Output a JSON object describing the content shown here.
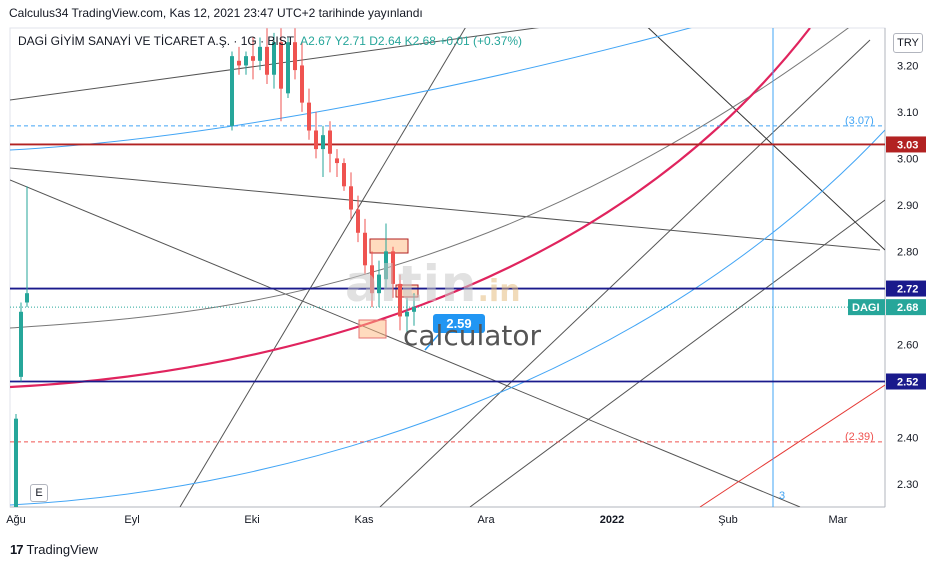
{
  "header": {
    "publisher_line": "Calculus34 TradingView.com, Kas 12, 2021 23:47 UTC+2 tarihinde yayınlandı"
  },
  "legend": {
    "symbol": "DAGİ GİYİM SANAYİ VE TİCARET A.Ş. · 1G · BIST",
    "ohlc": "A2.67  Y2.71  D2.64  K2.68  +0.01 (+0.37%)"
  },
  "currency": "TRY",
  "colors": {
    "up": "#26a69a",
    "down": "#ef5350",
    "level_red": "#b22222",
    "level_navy": "#1a1a8c",
    "curve": "#e0245e",
    "blue_line": "#42a5f5",
    "grey_line": "#555555"
  },
  "watermark": {
    "brand": "altin",
    "suffix": ".in",
    "sub": "calculator"
  },
  "e_badge": "E",
  "footer": {
    "brand": "TradingView",
    "logo": "17"
  },
  "chart_data": {
    "type": "candlestick",
    "title": "",
    "ylim": [
      2.25,
      3.3
    ],
    "y_ticks": [
      2.3,
      2.4,
      2.6,
      2.8,
      2.9,
      3.0,
      3.1,
      3.2
    ],
    "x_tick_labels": [
      "Ağu",
      "Eyl",
      "Eki",
      "Kas",
      "Ara",
      "2022",
      "Şub",
      "Mar"
    ],
    "price_levels": [
      {
        "label": "3.03",
        "value": 3.03,
        "style": "solid",
        "color": "#b22222"
      },
      {
        "label": "2.72",
        "value": 2.72,
        "style": "solid",
        "color": "#1a1a8c"
      },
      {
        "label": "2.52",
        "value": 2.52,
        "style": "solid",
        "color": "#1a1a8c"
      },
      {
        "label": "DAGI",
        "value": 2.68,
        "style": "dotted",
        "color": "#26a69a",
        "price_label": "2.68"
      },
      {
        "label": "(3.07)",
        "value": 3.07,
        "style": "dashed",
        "color": "#42a5f5"
      },
      {
        "label": "(2.39)",
        "value": 2.39,
        "style": "dashed",
        "color": "#ef5350"
      }
    ],
    "callout": "2.59",
    "vertical_marker_label": "3",
    "candles": [
      {
        "o": 2.25,
        "h": 2.45,
        "l": 2.25,
        "c": 2.44
      },
      {
        "o": 2.53,
        "h": 2.69,
        "l": 2.52,
        "c": 2.67
      },
      {
        "o": 2.69,
        "h": 2.94,
        "l": 2.68,
        "c": 2.71
      },
      {
        "o": 3.07,
        "h": 3.23,
        "l": 3.06,
        "c": 3.22
      },
      {
        "o": 3.21,
        "h": 3.24,
        "l": 3.18,
        "c": 3.2
      },
      {
        "o": 3.2,
        "h": 3.23,
        "l": 3.18,
        "c": 3.22
      },
      {
        "o": 3.22,
        "h": 3.26,
        "l": 3.17,
        "c": 3.21
      },
      {
        "o": 3.21,
        "h": 3.26,
        "l": 3.19,
        "c": 3.24
      },
      {
        "o": 3.24,
        "h": 3.28,
        "l": 3.16,
        "c": 3.18
      },
      {
        "o": 3.18,
        "h": 3.27,
        "l": 3.15,
        "c": 3.25
      },
      {
        "o": 3.25,
        "h": 3.28,
        "l": 3.08,
        "c": 3.15
      },
      {
        "o": 3.14,
        "h": 3.26,
        "l": 3.13,
        "c": 3.25
      },
      {
        "o": 3.25,
        "h": 3.28,
        "l": 3.17,
        "c": 3.19
      },
      {
        "o": 3.2,
        "h": 3.25,
        "l": 3.1,
        "c": 3.12
      },
      {
        "o": 3.12,
        "h": 3.15,
        "l": 3.04,
        "c": 3.06
      },
      {
        "o": 3.06,
        "h": 3.1,
        "l": 3.0,
        "c": 3.02
      },
      {
        "o": 3.02,
        "h": 3.07,
        "l": 2.96,
        "c": 3.05
      },
      {
        "o": 3.06,
        "h": 3.08,
        "l": 2.97,
        "c": 3.01
      },
      {
        "o": 3.0,
        "h": 3.02,
        "l": 2.96,
        "c": 2.99
      },
      {
        "o": 2.99,
        "h": 3.0,
        "l": 2.93,
        "c": 2.94
      },
      {
        "o": 2.94,
        "h": 2.97,
        "l": 2.87,
        "c": 2.89
      },
      {
        "o": 2.89,
        "h": 2.92,
        "l": 2.82,
        "c": 2.84
      },
      {
        "o": 2.84,
        "h": 2.87,
        "l": 2.75,
        "c": 2.77
      },
      {
        "o": 2.77,
        "h": 2.8,
        "l": 2.68,
        "c": 2.71
      },
      {
        "o": 2.71,
        "h": 2.78,
        "l": 2.68,
        "c": 2.75
      },
      {
        "o": 2.74,
        "h": 2.86,
        "l": 2.72,
        "c": 2.8
      },
      {
        "o": 2.8,
        "h": 2.81,
        "l": 2.7,
        "c": 2.73
      },
      {
        "o": 2.73,
        "h": 2.75,
        "l": 2.63,
        "c": 2.66
      },
      {
        "o": 2.66,
        "h": 2.7,
        "l": 2.62,
        "c": 2.67
      },
      {
        "o": 2.67,
        "h": 2.71,
        "l": 2.64,
        "c": 2.68
      }
    ]
  }
}
